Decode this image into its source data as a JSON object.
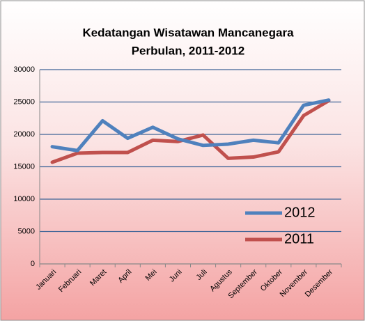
{
  "chart_data": {
    "type": "line",
    "title": [
      "Kedatangan Wisatawan Mancanegara",
      "Perbulan, 2011-2012"
    ],
    "categories": [
      "Januari",
      "Februari",
      "Maret",
      "April",
      "Mei",
      "Juni",
      "Juli",
      "Agustus",
      "September",
      "Oktober",
      "November",
      "Desember"
    ],
    "series": [
      {
        "name": "2012",
        "color": "#4f81bd",
        "values": [
          18100,
          17500,
          22100,
          19400,
          21100,
          19300,
          18300,
          18500,
          19100,
          18700,
          24500,
          25300
        ]
      },
      {
        "name": "2011",
        "color": "#c0504d",
        "values": [
          15700,
          17100,
          17200,
          17200,
          19100,
          18900,
          19900,
          16300,
          16500,
          17300,
          22900,
          25200
        ]
      }
    ],
    "ylim": [
      0,
      30000
    ],
    "yticks": [
      0,
      5000,
      10000,
      15000,
      20000,
      25000,
      30000
    ],
    "grid": true
  }
}
